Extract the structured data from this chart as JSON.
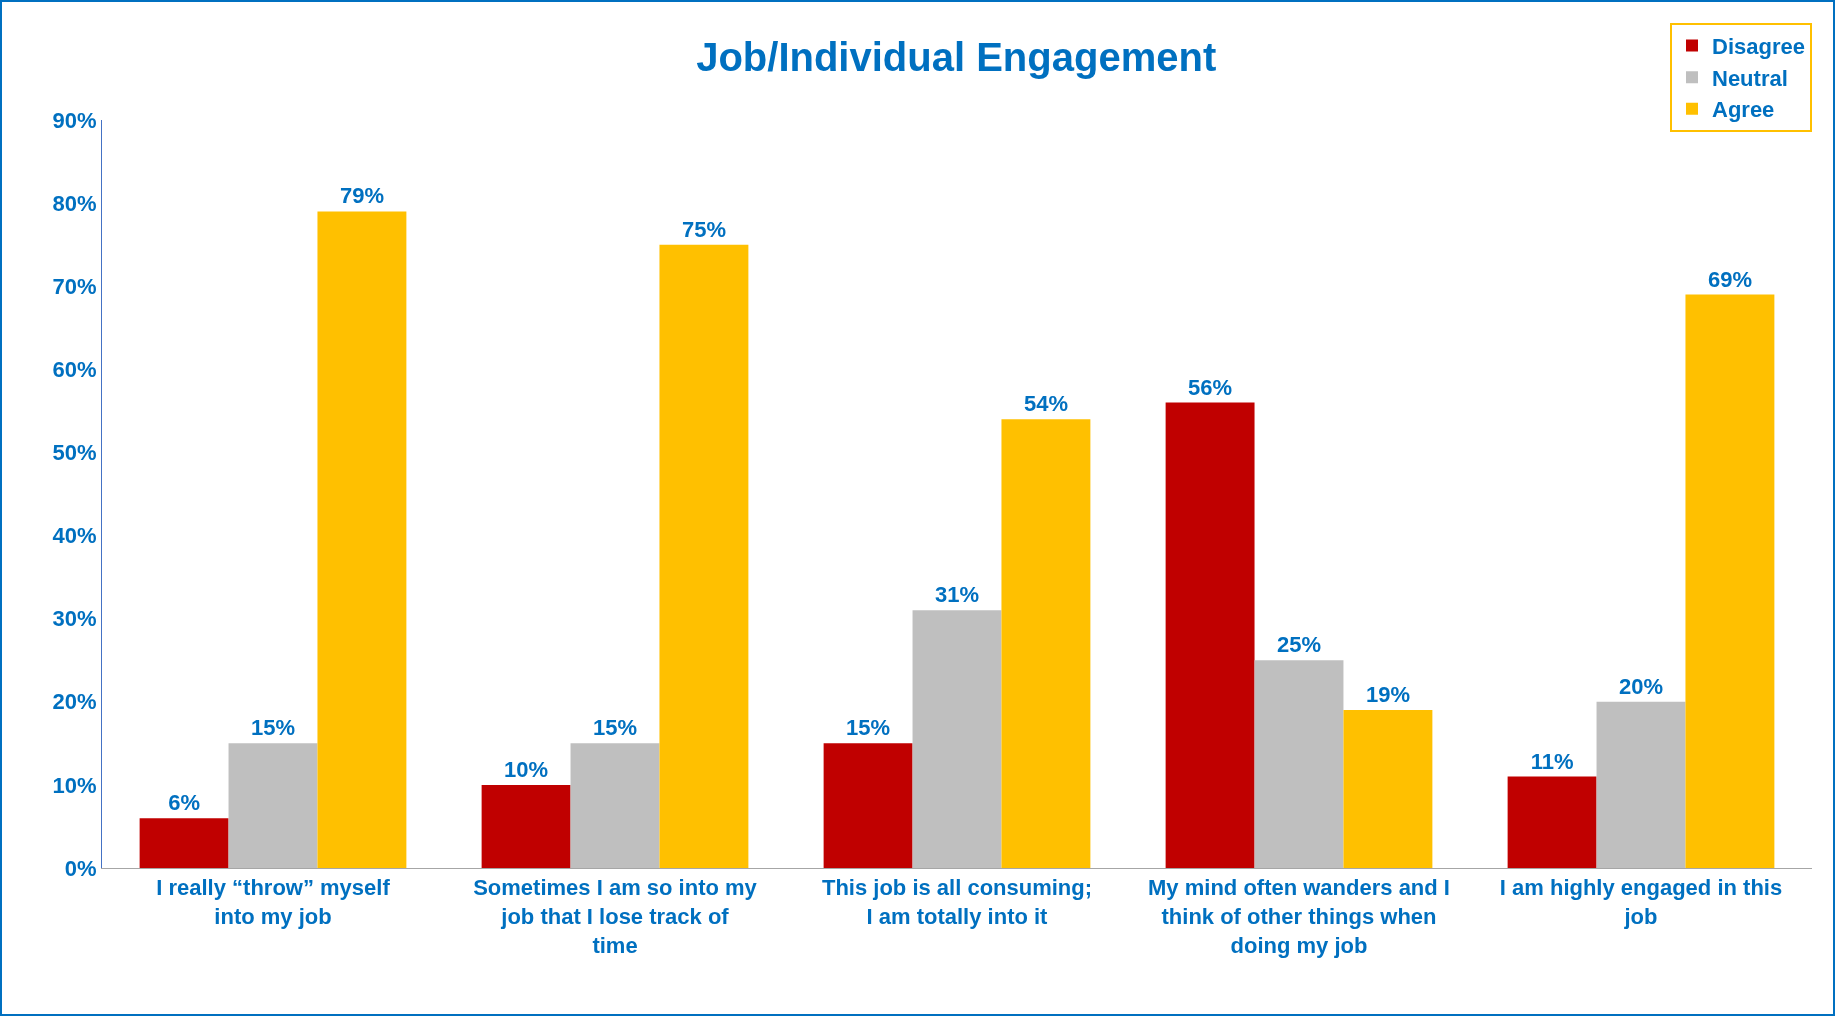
{
  "chart_data": {
    "type": "bar",
    "title": "Job/Individual Engagement",
    "categories": [
      "I really “throw” myself into my job",
      "Sometimes I am so into my job that I lose track of time",
      "This job is all consuming; I am totally into it",
      "My mind often wanders and I think of other things when doing my job",
      "I am highly engaged in this job"
    ],
    "series": [
      {
        "name": "Disagree",
        "color": "#c00000",
        "values": [
          6,
          10,
          15,
          56,
          11
        ],
        "value_labels": [
          "6%",
          "10%",
          "15%",
          "56%",
          "11%"
        ]
      },
      {
        "name": "Neutral",
        "color": "#bfbfbf",
        "values": [
          15,
          15,
          31,
          25,
          20
        ],
        "value_labels": [
          "15%",
          "15%",
          "31%",
          "25%",
          "20%"
        ]
      },
      {
        "name": "Agree",
        "color": "#ffc000",
        "values": [
          79,
          75,
          54,
          19,
          69
        ],
        "value_labels": [
          "79%",
          "75%",
          "54%",
          "19%",
          "69%"
        ]
      }
    ],
    "ylim": [
      0,
      90
    ],
    "yticks": [
      {
        "value": 0,
        "label": "0%"
      },
      {
        "value": 10,
        "label": "10%"
      },
      {
        "value": 20,
        "label": "20%"
      },
      {
        "value": 30,
        "label": "30%"
      },
      {
        "value": 40,
        "label": "40%"
      },
      {
        "value": 50,
        "label": "50%"
      },
      {
        "value": 60,
        "label": "60%"
      },
      {
        "value": 70,
        "label": "70%"
      },
      {
        "value": 80,
        "label": "80%"
      },
      {
        "value": 90,
        "label": "90%"
      }
    ],
    "grid": false,
    "legend": "top right"
  }
}
